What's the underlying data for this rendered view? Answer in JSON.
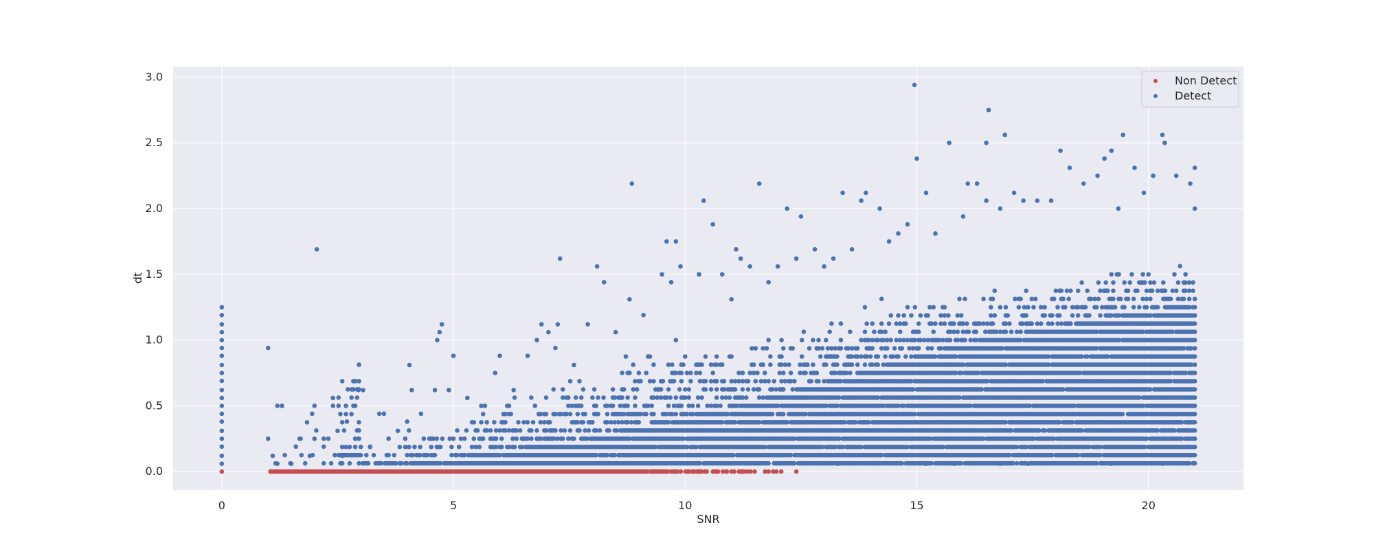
{
  "chart_data": {
    "type": "scatter",
    "xlabel": "SNR",
    "ylabel": "dt",
    "xlim": [
      -1.05,
      22.05
    ],
    "ylim": [
      -0.14,
      3.08
    ],
    "xticks": [
      0,
      5,
      10,
      15,
      20
    ],
    "yticks": [
      0.0,
      0.5,
      1.0,
      1.5,
      2.0,
      2.5,
      3.0
    ],
    "xtick_labels": [
      "0",
      "5",
      "10",
      "15",
      "20"
    ],
    "ytick_labels": [
      "0.0",
      "0.5",
      "1.0",
      "1.5",
      "2.0",
      "2.5",
      "3.0"
    ],
    "grid": true,
    "legend_position": "top-right",
    "series": [
      {
        "name": "Non Detect",
        "color": "#c44e52",
        "points": [
          [
            0,
            0
          ],
          [
            1.05,
            0
          ],
          [
            1.3,
            0
          ],
          [
            1.6,
            0
          ],
          [
            2.0,
            0
          ],
          [
            2.4,
            0
          ],
          [
            2.8,
            0
          ],
          [
            3.2,
            0
          ],
          [
            3.6,
            0
          ],
          [
            4.0,
            0
          ],
          [
            4.5,
            0
          ],
          [
            5.0,
            0
          ],
          [
            5.5,
            0
          ],
          [
            6.0,
            0
          ],
          [
            6.5,
            0
          ],
          [
            7.0,
            0
          ],
          [
            7.5,
            0
          ],
          [
            8.0,
            0
          ],
          [
            8.5,
            0
          ],
          [
            9.0,
            0
          ],
          [
            9.4,
            0
          ],
          [
            9.8,
            0
          ],
          [
            10.2,
            0
          ],
          [
            10.6,
            0
          ],
          [
            10.9,
            0
          ],
          [
            11.0,
            0
          ],
          [
            11.2,
            0
          ],
          [
            11.5,
            0
          ],
          [
            11.8,
            0
          ],
          [
            11.9,
            0
          ],
          [
            12.4,
            0
          ]
        ]
      },
      {
        "name": "Detect",
        "color": "#4c72b0",
        "points": [
          [
            0,
            0.06
          ],
          [
            0,
            0.12
          ],
          [
            0,
            0.19
          ],
          [
            0,
            0.25
          ],
          [
            0,
            0.31
          ],
          [
            0,
            0.38
          ],
          [
            0,
            0.44
          ],
          [
            0,
            0.5
          ],
          [
            0,
            0.56
          ],
          [
            0,
            0.62
          ],
          [
            0,
            0.69
          ],
          [
            0,
            0.75
          ],
          [
            0,
            0.81
          ],
          [
            0,
            0.88
          ],
          [
            0,
            0.94
          ],
          [
            0,
            1.0
          ],
          [
            0,
            1.06
          ],
          [
            0,
            1.12
          ],
          [
            0,
            1.19
          ],
          [
            0,
            1.25
          ],
          [
            1.0,
            0.94
          ],
          [
            1.0,
            0.25
          ],
          [
            1.1,
            0.12
          ],
          [
            1.2,
            0.06
          ],
          [
            1.2,
            0.5
          ],
          [
            1.3,
            0.5
          ],
          [
            1.5,
            0.06
          ],
          [
            1.6,
            0.19
          ],
          [
            1.7,
            0.25
          ],
          [
            1.9,
            0.12
          ],
          [
            1.95,
            0.44
          ],
          [
            2.0,
            0.5
          ],
          [
            2.05,
            1.69
          ],
          [
            2.2,
            0.19
          ],
          [
            2.3,
            0.25
          ],
          [
            2.4,
            0.56
          ],
          [
            2.5,
            0.31
          ],
          [
            2.6,
            0.12
          ],
          [
            2.7,
            0.38
          ],
          [
            2.95,
            0.62
          ],
          [
            3.05,
            0.62
          ],
          [
            3.2,
            0.19
          ],
          [
            3.4,
            0.44
          ],
          [
            3.5,
            0.44
          ],
          [
            3.6,
            0.25
          ],
          [
            3.8,
            0.31
          ],
          [
            4.0,
            0.38
          ],
          [
            4.05,
            0.81
          ],
          [
            4.1,
            0.62
          ],
          [
            4.3,
            0.44
          ],
          [
            4.6,
            0.62
          ],
          [
            4.65,
            1.0
          ],
          [
            4.7,
            1.06
          ],
          [
            4.75,
            1.12
          ],
          [
            4.9,
            0.62
          ],
          [
            5.0,
            0.88
          ],
          [
            5.3,
            0.56
          ],
          [
            5.6,
            0.5
          ],
          [
            5.9,
            0.75
          ],
          [
            6.0,
            0.88
          ],
          [
            6.3,
            0.62
          ],
          [
            6.6,
            0.88
          ],
          [
            6.8,
            1.0
          ],
          [
            6.9,
            1.12
          ],
          [
            7.05,
            1.06
          ],
          [
            7.2,
            0.94
          ],
          [
            7.25,
            1.12
          ],
          [
            7.3,
            1.62
          ],
          [
            7.6,
            0.81
          ],
          [
            7.9,
            1.12
          ],
          [
            8.1,
            1.56
          ],
          [
            8.25,
            1.44
          ],
          [
            8.5,
            1.06
          ],
          [
            8.8,
            1.31
          ],
          [
            8.85,
            2.19
          ],
          [
            9.1,
            1.19
          ],
          [
            9.5,
            1.5
          ],
          [
            9.6,
            1.75
          ],
          [
            9.7,
            1.44
          ],
          [
            9.8,
            1.75
          ],
          [
            9.9,
            1.56
          ],
          [
            10.3,
            1.5
          ],
          [
            10.4,
            2.06
          ],
          [
            10.6,
            1.88
          ],
          [
            10.8,
            1.5
          ],
          [
            11.0,
            1.31
          ],
          [
            11.1,
            1.69
          ],
          [
            11.2,
            1.62
          ],
          [
            11.4,
            1.56
          ],
          [
            11.6,
            2.19
          ],
          [
            11.8,
            1.44
          ],
          [
            12.0,
            1.56
          ],
          [
            12.2,
            2.0
          ],
          [
            12.4,
            1.62
          ],
          [
            12.5,
            1.94
          ],
          [
            12.8,
            1.69
          ],
          [
            13.0,
            1.56
          ],
          [
            13.2,
            1.62
          ],
          [
            13.4,
            2.12
          ],
          [
            13.6,
            1.69
          ],
          [
            13.8,
            2.06
          ],
          [
            13.9,
            2.12
          ],
          [
            14.2,
            2.0
          ],
          [
            14.4,
            1.75
          ],
          [
            14.6,
            1.81
          ],
          [
            14.8,
            1.88
          ],
          [
            14.95,
            2.94
          ],
          [
            15.0,
            2.38
          ],
          [
            15.2,
            2.12
          ],
          [
            15.4,
            1.81
          ],
          [
            15.7,
            2.5
          ],
          [
            16.0,
            1.94
          ],
          [
            16.1,
            2.19
          ],
          [
            16.3,
            2.19
          ],
          [
            16.5,
            2.06
          ],
          [
            16.5,
            2.5
          ],
          [
            16.55,
            2.75
          ],
          [
            16.8,
            2.0
          ],
          [
            16.9,
            2.56
          ],
          [
            17.1,
            2.12
          ],
          [
            17.3,
            2.06
          ],
          [
            17.6,
            2.06
          ],
          [
            17.9,
            2.06
          ],
          [
            18.1,
            2.44
          ],
          [
            18.3,
            2.31
          ],
          [
            18.6,
            2.19
          ],
          [
            18.9,
            2.25
          ],
          [
            19.05,
            2.38
          ],
          [
            19.2,
            2.44
          ],
          [
            19.35,
            2.0
          ],
          [
            19.45,
            2.56
          ],
          [
            19.7,
            2.31
          ],
          [
            19.9,
            2.12
          ],
          [
            20.1,
            2.25
          ],
          [
            20.3,
            2.56
          ],
          [
            20.35,
            2.5
          ],
          [
            20.6,
            2.25
          ],
          [
            20.9,
            2.19
          ],
          [
            21.0,
            2.31
          ],
          [
            21.0,
            2.0
          ],
          [
            19.2,
            0.06
          ],
          [
            20.3,
            0.06
          ],
          [
            16.8,
            0.06
          ],
          [
            17.4,
            0.06
          ],
          [
            15.2,
            0.06
          ],
          [
            15.8,
            0.06
          ],
          [
            13.3,
            0.06
          ]
        ]
      }
    ]
  }
}
